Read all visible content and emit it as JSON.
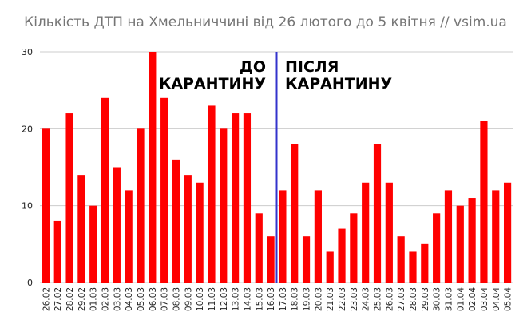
{
  "title": "Кількість ДТП на Хмельниччині від 26 лютого до 5 квітня // vsim.ua",
  "chart_data": {
    "type": "bar",
    "title": "Кількість ДТП на Хмельниччині від 26 лютого до 5 квітня // vsim.ua",
    "xlabel": "",
    "ylabel": "",
    "ylim": [
      0,
      30
    ],
    "yticks": [
      0,
      10,
      20,
      30
    ],
    "grid": true,
    "colors": {
      "bar": "#ff0000",
      "divider": "#3333cc",
      "grid": "#cccccc"
    },
    "categories": [
      "26.02",
      "27.02",
      "28.02",
      "29.02",
      "01.03",
      "02.03",
      "03.03",
      "04.03",
      "05.03",
      "06.03",
      "07.03",
      "08.03",
      "09.03",
      "10.03",
      "11.03",
      "12.03",
      "13.03",
      "14.03",
      "15.03",
      "16.03",
      "17.03",
      "18.03",
      "19.03",
      "20.03",
      "21.03",
      "22.03",
      "23.03",
      "24.03",
      "25.03",
      "26.03",
      "27.03",
      "28.03",
      "29.03",
      "30.03",
      "31.03",
      "01.04",
      "02.04",
      "03.04",
      "04.04",
      "05.04"
    ],
    "values": [
      20,
      8,
      22,
      14,
      10,
      24,
      15,
      12,
      20,
      30,
      24,
      16,
      14,
      13,
      23,
      20,
      22,
      22,
      9,
      6,
      12,
      18,
      6,
      12,
      4,
      7,
      9,
      13,
      18,
      13,
      6,
      4,
      5,
      9,
      12,
      10,
      11,
      21,
      12,
      13
    ],
    "divider_between": [
      "16.03",
      "17.03"
    ],
    "annotations": {
      "before": [
        "ДО",
        "КАРАНТИНУ"
      ],
      "after": [
        "ПІСЛЯ",
        "КАРАНТИНУ"
      ]
    }
  }
}
